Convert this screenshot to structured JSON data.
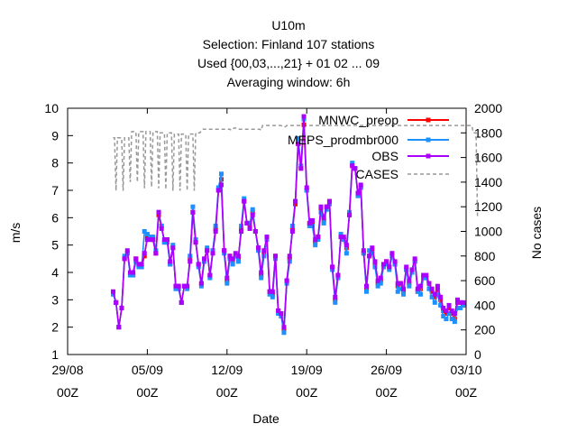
{
  "chart_data": {
    "type": "line",
    "title": [
      "U10m",
      "Selection: Finland    107 stations",
      "Used {00,03,...,21} + 01 02 ... 09",
      "Averaging window:  6h"
    ],
    "xlabel": "Date",
    "ylabel": "m/s",
    "y2label": "No cases",
    "ylim": [
      1,
      10
    ],
    "y2lim": [
      0,
      2000
    ],
    "yticks": [
      "1",
      "2",
      "3",
      "4",
      "5",
      "6",
      "7",
      "8",
      "9",
      "10"
    ],
    "y2ticks": [
      "0",
      "200",
      "400",
      "600",
      "800",
      "1000",
      "1200",
      "1400",
      "1600",
      "1800",
      "2000"
    ],
    "xticks": [
      {
        "top": "29/08",
        "bottom": "00Z"
      },
      {
        "top": "05/09",
        "bottom": "00Z"
      },
      {
        "top": "12/09",
        "bottom": "00Z"
      },
      {
        "top": "19/09",
        "bottom": "00Z"
      },
      {
        "top": "26/09",
        "bottom": "00Z"
      },
      {
        "top": "03/10",
        "bottom": "00Z"
      }
    ],
    "xlim_days": [
      0,
      35
    ],
    "grid": false,
    "legend_position": "top-right",
    "colors": {
      "MNWC_preop": "#ff0000",
      "MEPS_prodmbr000": "#1e90ff",
      "OBS": "#aa00ff",
      "CASES": "#999999"
    },
    "obs_x_start_day": 4.0,
    "obs_x_step_day": 0.25,
    "series": [
      {
        "name": "MNWC_preop",
        "values": [
          3.25,
          2.9,
          2.0,
          2.7,
          4.5,
          4.7,
          4.0,
          3.9,
          4.5,
          4.3,
          4.2,
          4.6,
          5.3,
          5.2,
          5.2,
          4.7,
          6.1,
          5.7,
          5.1,
          5.2,
          4.3,
          4.9,
          3.5,
          3.5,
          2.9,
          3.5,
          3.5,
          4.5,
          6.2,
          5.1,
          4.3,
          3.6,
          4.4,
          4.8,
          3.9,
          4.8,
          5.6,
          7.0,
          7.4,
          4.8,
          3.7,
          4.6,
          4.4,
          4.6,
          4.5,
          5.6,
          6.6,
          5.8,
          5.7,
          6.2,
          5.5,
          4.9,
          3.9,
          4.7,
          5.2,
          3.3,
          3.2,
          4.6,
          2.6,
          2.5,
          1.9,
          3.7,
          4.5,
          5.6,
          6.5,
          8.7,
          7.8,
          9.4,
          7.0,
          5.8,
          5.8,
          5.1,
          5.3,
          6.3,
          5.9,
          6.4,
          6.6,
          4.2,
          3.0,
          3.9,
          5.3,
          5.2,
          4.9,
          6.1,
          7.9,
          7.8,
          6.8,
          7.1,
          4.7,
          3.4,
          4.6,
          4.8,
          4.3,
          3.6,
          3.7,
          4.2,
          4.4,
          4.2,
          4.6,
          4.3,
          3.5,
          3.6,
          3.3,
          4.1,
          3.6,
          4.1,
          4.4,
          3.3,
          3.4,
          3.8,
          3.8,
          3.6,
          3.3,
          3.1,
          3.4,
          3.0,
          2.6,
          2.5,
          2.7,
          2.5,
          2.3,
          2.9,
          2.9,
          2.8
        ]
      },
      {
        "name": "MEPS_prodmbr000",
        "values": [
          3.2,
          2.9,
          2.0,
          2.7,
          4.6,
          4.7,
          3.9,
          3.9,
          4.4,
          4.2,
          4.2,
          5.5,
          5.4,
          5.3,
          5.3,
          4.8,
          6.2,
          5.7,
          5.1,
          5.1,
          4.3,
          5.0,
          3.4,
          3.4,
          2.9,
          3.5,
          3.4,
          4.6,
          6.4,
          5.2,
          4.2,
          3.5,
          4.4,
          4.9,
          3.8,
          4.8,
          5.7,
          7.1,
          7.6,
          4.7,
          3.6,
          4.5,
          4.3,
          4.6,
          4.4,
          5.7,
          6.7,
          5.8,
          5.8,
          6.3,
          5.5,
          4.8,
          3.8,
          4.6,
          5.2,
          3.2,
          3.1,
          4.5,
          2.5,
          2.4,
          1.8,
          3.6,
          4.4,
          5.7,
          6.6,
          8.9,
          7.9,
          9.6,
          7.0,
          5.7,
          5.7,
          5.0,
          5.2,
          6.2,
          5.8,
          6.3,
          6.5,
          4.1,
          2.9,
          3.8,
          5.4,
          5.2,
          4.7,
          6.2,
          8.0,
          7.8,
          6.8,
          7.1,
          4.7,
          3.3,
          4.8,
          4.7,
          4.2,
          3.5,
          3.6,
          4.2,
          4.3,
          4.1,
          4.6,
          4.3,
          3.3,
          3.4,
          3.2,
          4.1,
          3.5,
          4.0,
          4.4,
          3.3,
          3.2,
          3.8,
          3.8,
          3.4,
          3.1,
          2.9,
          3.2,
          2.8,
          2.4,
          2.3,
          2.5,
          2.3,
          2.2,
          2.7,
          2.7,
          2.8
        ]
      },
      {
        "name": "OBS",
        "values": [
          3.3,
          2.9,
          2.0,
          2.7,
          4.5,
          4.8,
          4.0,
          4.0,
          4.5,
          4.3,
          4.3,
          4.7,
          5.2,
          5.2,
          5.2,
          4.7,
          6.2,
          5.6,
          5.2,
          5.2,
          4.4,
          4.9,
          3.5,
          3.5,
          2.9,
          3.5,
          3.5,
          4.4,
          6.2,
          5.1,
          4.3,
          3.6,
          4.5,
          4.8,
          3.9,
          4.7,
          5.5,
          7.0,
          7.2,
          4.8,
          3.8,
          4.6,
          4.5,
          4.7,
          4.6,
          5.5,
          6.6,
          5.8,
          5.6,
          6.1,
          5.5,
          4.9,
          4.0,
          4.8,
          5.3,
          3.3,
          3.3,
          4.6,
          2.6,
          2.5,
          2.0,
          3.7,
          4.6,
          5.5,
          6.6,
          8.7,
          7.8,
          9.7,
          7.1,
          5.8,
          5.9,
          5.2,
          5.3,
          6.4,
          6.0,
          6.4,
          6.6,
          4.2,
          3.1,
          3.9,
          5.3,
          5.3,
          5.0,
          6.1,
          7.9,
          7.8,
          6.9,
          7.2,
          4.8,
          3.5,
          4.6,
          4.9,
          4.4,
          3.7,
          3.8,
          4.3,
          4.4,
          4.2,
          4.7,
          4.4,
          3.6,
          3.6,
          3.4,
          4.2,
          3.7,
          4.1,
          4.5,
          3.4,
          3.5,
          3.9,
          3.9,
          3.6,
          3.4,
          3.2,
          3.5,
          3.1,
          2.7,
          2.6,
          2.8,
          2.6,
          2.5,
          3.0,
          2.9,
          2.9
        ]
      },
      {
        "name": "CASES",
        "axis": "y2",
        "x_start_day": 4.0,
        "x_step_day": 0.125,
        "values": [
          1760,
          1760,
          1330,
          1760,
          1760,
          1760,
          1760,
          1330,
          1760,
          1760,
          1760,
          1760,
          1400,
          1810,
          1810,
          1810,
          1810,
          1400,
          1810,
          1810,
          1810,
          1810,
          1350,
          1810,
          1810,
          1810,
          1810,
          1360,
          1810,
          1810,
          1810,
          1810,
          1350,
          1800,
          1800,
          1800,
          1800,
          1340,
          1800,
          1800,
          1800,
          1800,
          1330,
          1790,
          1790,
          1790,
          1790,
          1330,
          1790,
          1790,
          1790,
          1790,
          1330,
          1790,
          1790,
          1790,
          1790,
          1330,
          1800,
          1800,
          1800,
          1800,
          1820,
          1830,
          1830,
          1830,
          1830,
          1830,
          1830,
          1830,
          1830,
          1830,
          1830,
          1830,
          1830,
          1830,
          1830,
          1830,
          1830,
          1830,
          1830,
          1830,
          1830,
          1820,
          1830,
          1840,
          1840,
          1830,
          1830,
          1830,
          1830,
          1830,
          1830,
          1830,
          1830,
          1830,
          1830,
          1830,
          1830,
          1830,
          1830,
          1830,
          1830,
          1830,
          1820,
          1860,
          1860,
          1860,
          1860,
          1860,
          1860,
          1860,
          1860,
          1860,
          1860,
          1860,
          1860,
          1860,
          1860,
          1850,
          1850,
          1850,
          1860,
          1860,
          1860,
          1860,
          1860,
          1860,
          1860,
          1860,
          1860,
          1860,
          1860,
          1860,
          1860,
          1860,
          1860,
          1860,
          1860,
          1860,
          1860,
          1860,
          1860,
          1860,
          1860,
          1860,
          1860,
          1860,
          1860,
          1860,
          1860,
          1860,
          1860,
          1860,
          1860,
          1860,
          1860,
          1860,
          1860,
          1860,
          1860,
          1860,
          1860,
          1860,
          1860,
          1860,
          1860,
          1860,
          1860,
          1860,
          1860,
          1860,
          1860,
          1860,
          1860,
          1860,
          1860,
          1860,
          1860,
          1860,
          1860,
          1860,
          1860,
          1860,
          1860,
          1860,
          1860,
          1860,
          1860,
          1860,
          1860,
          1860,
          1860,
          1860,
          1860,
          1860,
          1860,
          1860,
          1860,
          1860,
          1860,
          1860,
          1860,
          1860,
          1860,
          1860,
          1860,
          1860,
          1860,
          1860,
          1860,
          1860,
          1860,
          1860,
          1860,
          1860,
          1860,
          1860,
          1860,
          1860,
          1860,
          1860,
          1860,
          1860,
          1860,
          1860,
          1860,
          1860,
          1860,
          1860,
          1860,
          1860,
          1860,
          1860,
          1860,
          1860,
          1860,
          1860,
          1860,
          1860,
          1860,
          1860,
          1860,
          1860,
          1860,
          1860,
          1860,
          1860,
          1860,
          1860,
          1860,
          1860,
          1860,
          1800,
          1800,
          1800,
          1120
        ]
      }
    ]
  }
}
